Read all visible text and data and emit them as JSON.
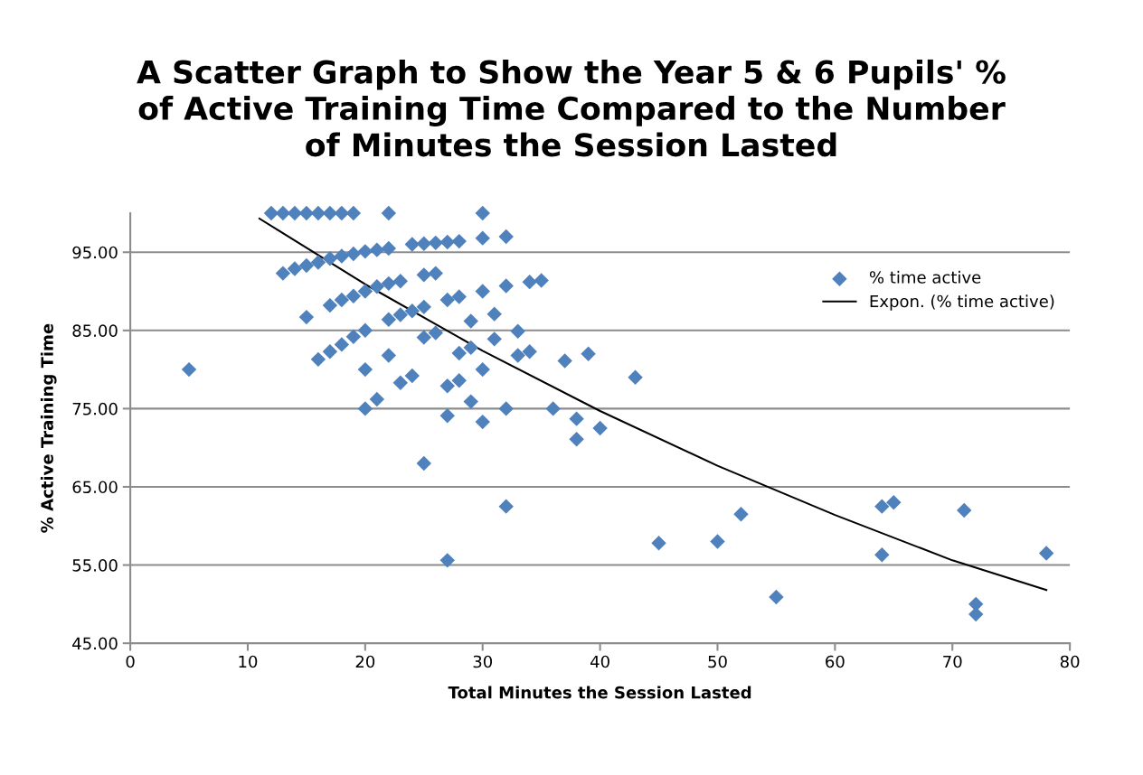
{
  "chart_data": {
    "type": "scatter",
    "title": "A Scatter Graph to Show the Year 5 & 6 Pupils' %\nof Active Training Time Compared to the Number\nof Minutes the Session Lasted",
    "xlabel": "Total Minutes the Session Lasted",
    "ylabel": "% Active Training Time",
    "xlim": [
      0,
      80
    ],
    "xticks": [
      0,
      10,
      20,
      30,
      40,
      50,
      60,
      70,
      80
    ],
    "ylim": [
      45,
      100
    ],
    "yticks": [
      {
        "value": 45,
        "label": "45.00"
      },
      {
        "value": 55,
        "label": "55.00"
      },
      {
        "value": 65,
        "label": "65.00"
      },
      {
        "value": 75,
        "label": "75.00"
      },
      {
        "value": 85,
        "label": "85.00"
      },
      {
        "value": 95,
        "label": "95.00"
      }
    ],
    "grid": "y",
    "legend": "top right",
    "series": [
      {
        "name": "% time active",
        "marker": "diamond",
        "color": "#4f81bd",
        "x": [
          12,
          13,
          14,
          15,
          16,
          17,
          18,
          19,
          22,
          30,
          24,
          25,
          26,
          27,
          28,
          30,
          32,
          13,
          14,
          15,
          16,
          17,
          18,
          19,
          20,
          21,
          22,
          20,
          21,
          22,
          23,
          25,
          26,
          30,
          32,
          34,
          35,
          15,
          17,
          18,
          19,
          22,
          23,
          24,
          25,
          27,
          28,
          29,
          31,
          33,
          16,
          17,
          18,
          19,
          20,
          22,
          25,
          26,
          28,
          29,
          31,
          33,
          34,
          37,
          39,
          5,
          20,
          24,
          21,
          23,
          20,
          27,
          28,
          30,
          29,
          27,
          30,
          32,
          36,
          38,
          38,
          40,
          43,
          25,
          32,
          27,
          45,
          50,
          52,
          55,
          64,
          64,
          65,
          71,
          72,
          72,
          78
        ],
        "values": [
          100,
          100,
          100,
          100,
          100,
          100,
          100,
          100,
          100,
          100,
          96.0,
          96.1,
          96.2,
          96.3,
          96.4,
          96.8,
          97.0,
          92.3,
          92.9,
          93.3,
          93.7,
          94.2,
          94.5,
          94.8,
          95.1,
          95.3,
          95.5,
          90.0,
          90.6,
          91.0,
          91.3,
          92.1,
          92.3,
          90.0,
          90.7,
          91.2,
          91.4,
          86.7,
          88.2,
          88.9,
          89.4,
          86.4,
          87.0,
          87.5,
          88.0,
          88.9,
          89.3,
          86.2,
          87.1,
          84.9,
          81.3,
          82.3,
          83.2,
          84.2,
          85.0,
          81.8,
          84.1,
          84.7,
          82.1,
          82.8,
          83.9,
          81.8,
          82.3,
          81.1,
          82.0,
          80.0,
          80.0,
          79.2,
          76.2,
          78.3,
          75.0,
          77.9,
          78.6,
          80.0,
          75.9,
          74.1,
          73.3,
          75.0,
          75.0,
          73.7,
          71.1,
          72.5,
          79.0,
          68.0,
          62.5,
          55.6,
          57.8,
          58.0,
          61.5,
          50.9,
          62.5,
          56.3,
          63.0,
          62.0,
          50.0,
          48.7,
          56.5
        ]
      },
      {
        "name": "Expon. (% time active)",
        "type": "line",
        "marker": "none",
        "line_style": "solid",
        "color": "#000000",
        "x": [
          11,
          20,
          30,
          40,
          50,
          60,
          70,
          78
        ],
        "values": [
          99.3,
          90.9,
          82.4,
          74.7,
          67.7,
          61.4,
          55.6,
          51.8
        ]
      }
    ]
  }
}
